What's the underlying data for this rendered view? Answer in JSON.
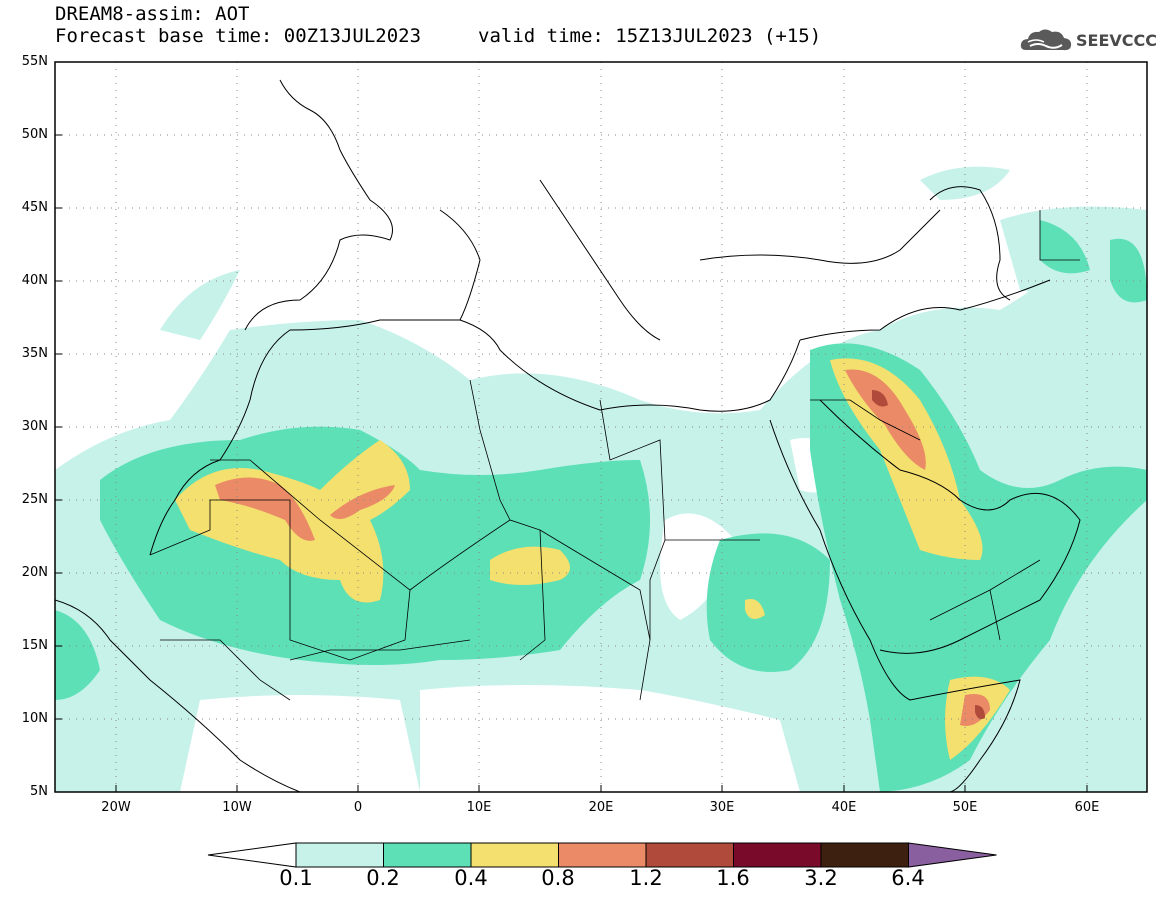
{
  "header": {
    "title_line1": "DREAM8-assim: AOT",
    "title_line2": "Forecast base time: 00Z13JUL2023",
    "valid_time": "valid time: 15Z13JUL2023 (+15)"
  },
  "logo": {
    "text": "SEEVCCC",
    "icon": "cloud-logo-icon"
  },
  "map": {
    "lat_labels": [
      "55N",
      "50N",
      "45N",
      "40N",
      "35N",
      "30N",
      "25N",
      "20N",
      "15N",
      "10N",
      "5N"
    ],
    "lon_labels": [
      "20W",
      "10W",
      "0",
      "10E",
      "20E",
      "30E",
      "40E",
      "50E",
      "60E"
    ]
  },
  "colorbar": {
    "levels": [
      "0.1",
      "0.2",
      "0.4",
      "0.8",
      "1.2",
      "1.6",
      "3.2",
      "6.4"
    ],
    "colors": [
      "#c6f2ea",
      "#5de0b6",
      "#f3e06e",
      "#ea8a66",
      "#b04a3a",
      "#7a0a2a",
      "#3e2010",
      "#8a5fa0"
    ]
  }
}
